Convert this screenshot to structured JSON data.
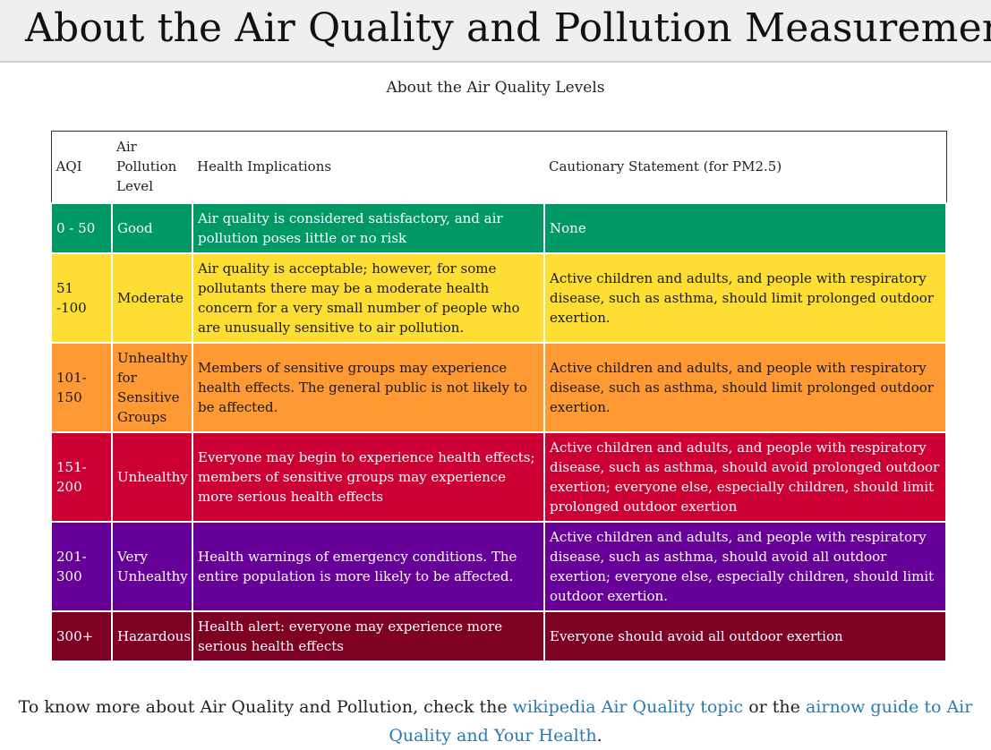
{
  "header": {
    "title": "About the Air Quality and Pollution Measurement:"
  },
  "caption": "About the Air Quality Levels",
  "table": {
    "headers": [
      "AQI",
      "Air Pollution Level",
      "Health Implications",
      "Cautionary Statement (for PM2.5)"
    ],
    "rows": [
      {
        "aqi": "0 - 50",
        "level": "Good",
        "health": "Air quality is considered satisfactory, and air pollution poses little or no risk",
        "caution": "None",
        "color": "#009966"
      },
      {
        "aqi": "51 -100",
        "level": "Moderate",
        "health": "Air quality is acceptable; however, for some pollutants there may be a moderate health concern for a very small number of people who are unusually sensitive to air pollution.",
        "caution": "Active children and adults, and people with respiratory disease, such as asthma, should limit prolonged outdoor exertion.",
        "color": "#ffde33"
      },
      {
        "aqi": "101-150",
        "level": "Unhealthy for Sensitive Groups",
        "health": "Members of sensitive groups may experience health effects. The general public is not likely to be affected.",
        "caution": "Active children and adults, and people with respiratory disease, such as asthma, should limit prolonged outdoor exertion.",
        "color": "#ff9933"
      },
      {
        "aqi": "151-200",
        "level": "Unhealthy",
        "health": "Everyone may begin to experience health effects; members of sensitive groups may experience more serious health effects",
        "caution": "Active children and adults, and people with respiratory disease, such as asthma, should avoid prolonged outdoor exertion; everyone else, especially children, should limit prolonged outdoor exertion",
        "color": "#cc0033"
      },
      {
        "aqi": "201-300",
        "level": "Very Unhealthy",
        "health": "Health warnings of emergency conditions. The entire population is more likely to be affected.",
        "caution": "Active children and adults, and people with respiratory disease, such as asthma, should avoid all outdoor exertion; everyone else, especially children, should limit outdoor exertion.",
        "color": "#660099"
      },
      {
        "aqi": "300+",
        "level": "Hazardous",
        "health": "Health alert: everyone may experience more serious health effects",
        "caution": "Everyone should avoid all outdoor exertion",
        "color": "#7e0023"
      }
    ]
  },
  "footer": {
    "prefix": "To know more about Air Quality and Pollution, check the ",
    "link1": "wikipedia Air Quality topic",
    "middle": " or the ",
    "link2": "airnow guide to Air Quality and Your Health",
    "suffix": "."
  }
}
